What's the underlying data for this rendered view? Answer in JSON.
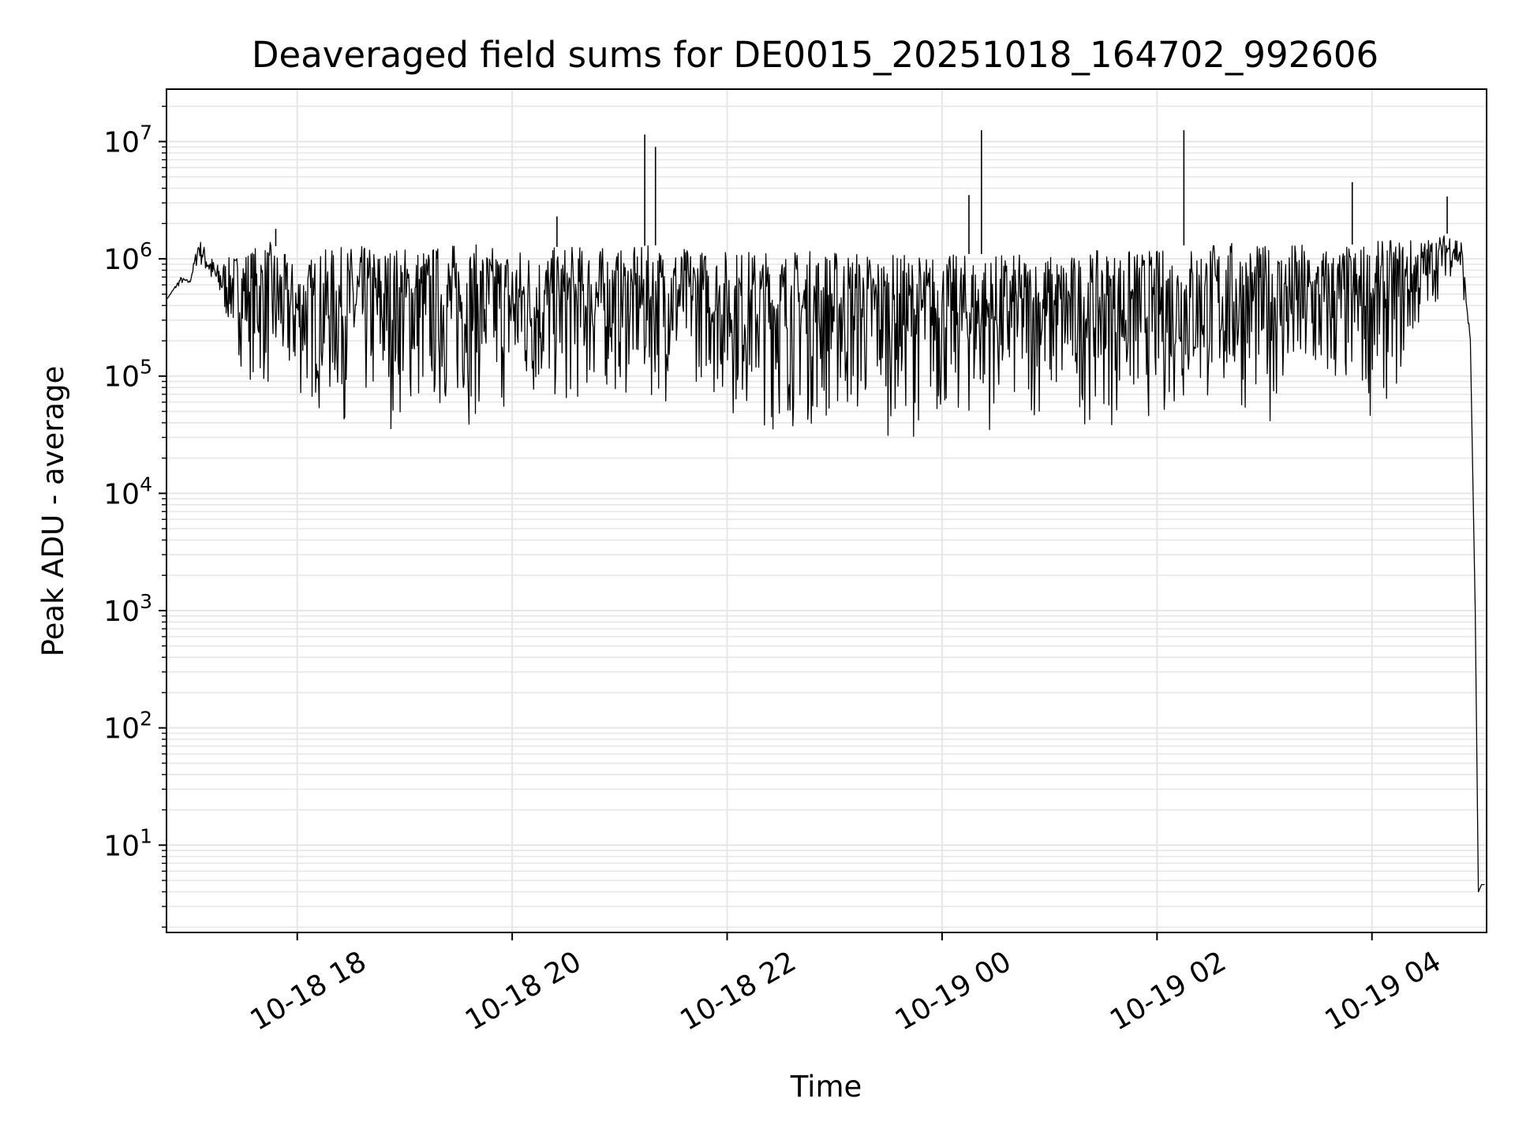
{
  "chart_data": {
    "type": "line",
    "title": "Deaveraged field sums for DE0015_20251018_164702_992606",
    "xlabel": "Time",
    "ylabel": "Peak ADU - average",
    "yscale": "log",
    "grid": true,
    "xlim": [
      "2025-10-18T16:47",
      "2025-10-19T05:04"
    ],
    "ylim": [
      1.8,
      28000000
    ],
    "x_ticks": [
      {
        "value": "2025-10-18T18:00",
        "label": "10-18 18"
      },
      {
        "value": "2025-10-18T20:00",
        "label": "10-18 20"
      },
      {
        "value": "2025-10-18T22:00",
        "label": "10-18 22"
      },
      {
        "value": "2025-10-19T00:00",
        "label": "10-19 00"
      },
      {
        "value": "2025-10-19T02:00",
        "label": "10-19 02"
      },
      {
        "value": "2025-10-19T04:00",
        "label": "10-19 04"
      }
    ],
    "y_ticks": [
      {
        "value": 10,
        "base": "10",
        "exp": "1"
      },
      {
        "value": 100,
        "base": "10",
        "exp": "2"
      },
      {
        "value": 1000,
        "base": "10",
        "exp": "3"
      },
      {
        "value": 10000,
        "base": "10",
        "exp": "4"
      },
      {
        "value": 100000,
        "base": "10",
        "exp": "5"
      },
      {
        "value": 1000000,
        "base": "10",
        "exp": "6"
      },
      {
        "value": 10000000,
        "base": "10",
        "exp": "7"
      }
    ],
    "series": [
      {
        "color": "#000000",
        "x": [
          "2025-10-18T16:47",
          "2025-10-18T16:55",
          "2025-10-18T17:00",
          "2025-10-18T17:05",
          "2025-10-18T17:15",
          "2025-10-18T17:30",
          "2025-10-18T17:45",
          "2025-10-18T18:00",
          "2025-10-18T18:15",
          "2025-10-18T18:30",
          "2025-10-18T18:45",
          "2025-10-18T19:00",
          "2025-10-18T19:15",
          "2025-10-18T19:30",
          "2025-10-18T19:45",
          "2025-10-18T20:00",
          "2025-10-18T20:15",
          "2025-10-18T20:30",
          "2025-10-18T20:45",
          "2025-10-18T21:00",
          "2025-10-18T21:15",
          "2025-10-18T21:30",
          "2025-10-18T21:45",
          "2025-10-18T22:00",
          "2025-10-18T22:15",
          "2025-10-18T22:30",
          "2025-10-18T22:45",
          "2025-10-18T23:00",
          "2025-10-18T23:15",
          "2025-10-18T23:30",
          "2025-10-18T23:45",
          "2025-10-19T00:00",
          "2025-10-19T00:15",
          "2025-10-19T00:30",
          "2025-10-19T00:45",
          "2025-10-19T01:00",
          "2025-10-19T01:15",
          "2025-10-19T01:30",
          "2025-10-19T01:45",
          "2025-10-19T02:00",
          "2025-10-19T02:15",
          "2025-10-19T02:30",
          "2025-10-19T02:45",
          "2025-10-19T03:00",
          "2025-10-19T03:15",
          "2025-10-19T03:30",
          "2025-10-19T03:45",
          "2025-10-19T04:00",
          "2025-10-19T04:15",
          "2025-10-19T04:30",
          "2025-10-19T04:40",
          "2025-10-19T04:45",
          "2025-10-19T04:50",
          "2025-10-19T04:55",
          "2025-10-19T05:04"
        ],
        "upper": [
          450000,
          700000,
          650000,
          1500000,
          900000,
          1200000,
          1400000,
          900000,
          1200000,
          1300000,
          1300000,
          1300000,
          1300000,
          1400000,
          1300000,
          1300000,
          1200000,
          1300000,
          1300000,
          1200000,
          1300000,
          1300000,
          1200000,
          1200000,
          1200000,
          1200000,
          1200000,
          1200000,
          1200000,
          1100000,
          1100000,
          1100000,
          1100000,
          1100000,
          1100000,
          1100000,
          1100000,
          1200000,
          1200000,
          1200000,
          1300000,
          1400000,
          1400000,
          1300000,
          1400000,
          1300000,
          1300000,
          1400000,
          1500000,
          1500000,
          1600000,
          1700000,
          1500000,
          200000,
          4
        ],
        "lower": [
          450000,
          600000,
          600000,
          900000,
          400000,
          100000,
          50000,
          50000,
          40000,
          35000,
          30000,
          35000,
          35000,
          35000,
          35000,
          35000,
          40000,
          40000,
          50000,
          60000,
          50000,
          60000,
          80000,
          40000,
          35000,
          30000,
          30000,
          30000,
          30000,
          30000,
          30000,
          30000,
          30000,
          30000,
          35000,
          35000,
          35000,
          35000,
          35000,
          35000,
          40000,
          40000,
          40000,
          40000,
          40000,
          40000,
          45000,
          40000,
          60000,
          250000,
          600000,
          700000,
          500000,
          200000,
          4
        ],
        "spikes": [
          {
            "x": "2025-10-18T21:14",
            "y": 11500000
          },
          {
            "x": "2025-10-18T21:20",
            "y": 9000000
          },
          {
            "x": "2025-10-19T00:15",
            "y": 3500000
          },
          {
            "x": "2025-10-19T00:22",
            "y": 12500000
          },
          {
            "x": "2025-10-19T02:15",
            "y": 12500000
          },
          {
            "x": "2025-10-19T03:49",
            "y": 4500000
          },
          {
            "x": "2025-10-19T04:42",
            "y": 3400000
          },
          {
            "x": "2025-10-18T20:25",
            "y": 2300000
          },
          {
            "x": "2025-10-18T17:48",
            "y": 1800000
          }
        ]
      }
    ]
  }
}
